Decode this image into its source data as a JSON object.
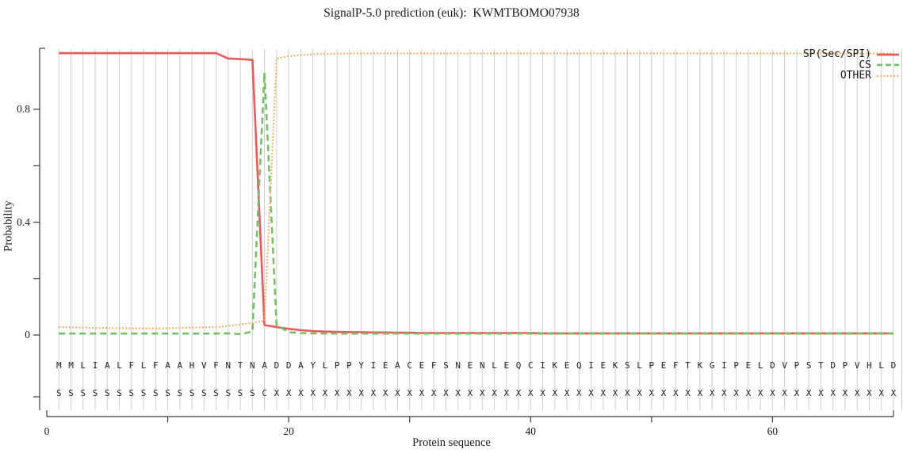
{
  "chart_data": {
    "type": "line",
    "title": "SignalP-5.0 prediction (euk):  KWMTBOMO07938",
    "x_axis": {
      "label": "Protein sequence",
      "range": [
        0,
        70
      ],
      "ticks_labeled": [
        0,
        20,
        40,
        60
      ],
      "ticks_minor": [
        10,
        30,
        50
      ],
      "grid": "vertical gridline at every residue position 1-70"
    },
    "y_axis": {
      "label": "Probability",
      "range": [
        0,
        1
      ],
      "ticks_labeled": [
        0,
        0.4,
        0.8
      ],
      "ticks_minor": [
        0.2,
        0.6
      ]
    },
    "legend_position": "top-right",
    "x": [
      1,
      2,
      3,
      4,
      5,
      6,
      7,
      8,
      9,
      10,
      11,
      12,
      13,
      14,
      15,
      16,
      17,
      18,
      19,
      20,
      21,
      22,
      23,
      24,
      25,
      26,
      27,
      28,
      29,
      30,
      31,
      32,
      33,
      34,
      35,
      36,
      37,
      38,
      39,
      40,
      41,
      42,
      43,
      44,
      45,
      46,
      47,
      48,
      49,
      50,
      51,
      52,
      53,
      54,
      55,
      56,
      57,
      58,
      59,
      60,
      61,
      62,
      63,
      64,
      65,
      66,
      67,
      68,
      69,
      70
    ],
    "series": [
      {
        "name": "SP(Sec/SPI)",
        "color": "#e85a5c",
        "style": "solid",
        "values": [
          0.999,
          0.999,
          0.999,
          0.999,
          0.999,
          0.999,
          0.999,
          0.999,
          0.999,
          0.999,
          0.999,
          0.999,
          0.999,
          0.999,
          0.98,
          0.978,
          0.975,
          0.035,
          0.028,
          0.022,
          0.017,
          0.014,
          0.012,
          0.011,
          0.01,
          0.01,
          0.009,
          0.009,
          0.008,
          0.008,
          0.007,
          0.007,
          0.007,
          0.007,
          0.007,
          0.007,
          0.007,
          0.007,
          0.007,
          0.007,
          0.006,
          0.006,
          0.006,
          0.006,
          0.006,
          0.006,
          0.006,
          0.006,
          0.006,
          0.006,
          0.006,
          0.006,
          0.006,
          0.006,
          0.006,
          0.006,
          0.006,
          0.006,
          0.006,
          0.006,
          0.006,
          0.006,
          0.006,
          0.006,
          0.006,
          0.006,
          0.006,
          0.006,
          0.006,
          0.006
        ]
      },
      {
        "name": "CS",
        "color": "#78be69",
        "style": "dashed",
        "values": [
          0.005,
          0.005,
          0.005,
          0.005,
          0.005,
          0.005,
          0.005,
          0.005,
          0.005,
          0.005,
          0.005,
          0.005,
          0.005,
          0.005,
          0.006,
          0.003,
          0.012,
          0.93,
          0.035,
          0.01,
          0.007,
          0.006,
          0.005,
          0.005,
          0.005,
          0.005,
          0.005,
          0.005,
          0.005,
          0.005,
          0.005,
          0.005,
          0.005,
          0.005,
          0.005,
          0.005,
          0.005,
          0.005,
          0.005,
          0.005,
          0.005,
          0.005,
          0.005,
          0.005,
          0.005,
          0.005,
          0.005,
          0.005,
          0.005,
          0.005,
          0.005,
          0.005,
          0.005,
          0.005,
          0.005,
          0.005,
          0.005,
          0.005,
          0.005,
          0.005,
          0.005,
          0.005,
          0.005,
          0.005,
          0.005,
          0.005,
          0.005,
          0.005,
          0.005,
          0.005
        ]
      },
      {
        "name": "OTHER",
        "color": "#f4b26a",
        "style": "dotted",
        "values": [
          0.028,
          0.027,
          0.026,
          0.025,
          0.025,
          0.024,
          0.024,
          0.023,
          0.023,
          0.024,
          0.025,
          0.026,
          0.027,
          0.028,
          0.032,
          0.037,
          0.043,
          0.05,
          0.98,
          0.988,
          0.992,
          0.995,
          0.996,
          0.997,
          0.998,
          0.998,
          0.998,
          0.998,
          0.998,
          0.998,
          0.998,
          0.998,
          0.998,
          0.998,
          0.998,
          0.998,
          0.998,
          0.998,
          0.998,
          0.998,
          0.998,
          0.998,
          0.998,
          0.998,
          0.998,
          0.998,
          0.998,
          0.998,
          0.998,
          0.998,
          0.998,
          0.998,
          0.998,
          0.998,
          0.998,
          0.998,
          0.998,
          0.998,
          0.998,
          0.998,
          0.998,
          0.998,
          0.998,
          0.998,
          0.998,
          0.998,
          0.998,
          0.998,
          0.998,
          0.998
        ]
      }
    ],
    "sequence_row": "MMLIALFLFAAHVFNTNADDAYLPPYIEACEFSNENLEQCIKEQIEKSLPEFTKGIPELDVPSTDPVHLD",
    "marks_row": "SSSSSSSSSSSSSSSSSCXXXXXXXXXXXXXXXXXXXXXXXXXXXXXXXXXXXXXXXXXXXXXXXXXXXX"
  },
  "colors": {
    "sp_line": "#e85a5c",
    "cs_line": "#78be69",
    "other_line": "#f4b26a",
    "grid": "#cdcdcd",
    "axis": "#3c3c3c",
    "text": "#1a1a1a"
  }
}
